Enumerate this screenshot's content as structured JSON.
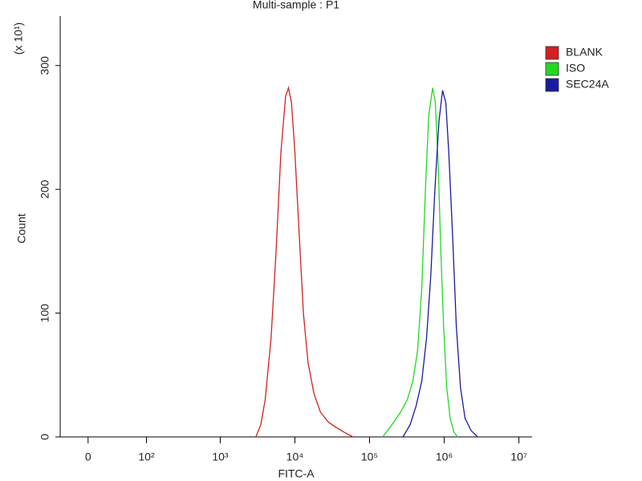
{
  "chart_data": {
    "type": "histogram-line",
    "title": "Multi-sample : P1",
    "x_label": "FITC-A",
    "y_label": "Count",
    "y_multiplier": "(x 10¹)",
    "xscale": "biexponential",
    "xlim": [
      -33,
      15000000
    ],
    "xticks": [
      0,
      {
        "value": 100,
        "label": "10²"
      },
      {
        "value": 1000,
        "label": "10³"
      },
      {
        "value": 10000,
        "label": "10⁴"
      },
      {
        "value": 100000,
        "label": "10⁵"
      },
      {
        "value": 1000000,
        "label": "10⁶"
      },
      {
        "value": 10000000,
        "label": "10⁷"
      }
    ],
    "ylim": [
      0,
      340
    ],
    "yticks": [
      0,
      100,
      200,
      300
    ],
    "legend": "right",
    "series": [
      {
        "name": "BLANK",
        "color": "#d42020",
        "x": [
          3000,
          3500,
          4000,
          4800,
          5600,
          6500,
          7500,
          8200,
          9000,
          10000,
          11500,
          13000,
          15000,
          18000,
          22000,
          28000,
          35000,
          45000,
          60000
        ],
        "values": [
          0,
          10,
          30,
          80,
          150,
          230,
          275,
          282,
          270,
          230,
          160,
          100,
          60,
          35,
          20,
          12,
          8,
          4,
          0
        ]
      },
      {
        "name": "ISO",
        "color": "#22d822",
        "x": [
          150000,
          200000,
          260000,
          320000,
          380000,
          440000,
          500000,
          560000,
          620000,
          700000,
          760000,
          830000,
          900000,
          980000,
          1080000,
          1200000,
          1350000,
          1500000
        ],
        "values": [
          0,
          10,
          20,
          30,
          45,
          70,
          120,
          200,
          260,
          282,
          270,
          220,
          150,
          90,
          40,
          15,
          4,
          0
        ]
      },
      {
        "name": "SEC24A",
        "color": "#1a1aa0",
        "x": [
          280000,
          350000,
          420000,
          500000,
          580000,
          660000,
          750000,
          850000,
          950000,
          1050000,
          1150000,
          1300000,
          1450000,
          1650000,
          1900000,
          2300000,
          2800000
        ],
        "values": [
          0,
          10,
          25,
          45,
          80,
          130,
          200,
          255,
          280,
          270,
          230,
          160,
          90,
          40,
          15,
          5,
          0
        ]
      }
    ]
  }
}
